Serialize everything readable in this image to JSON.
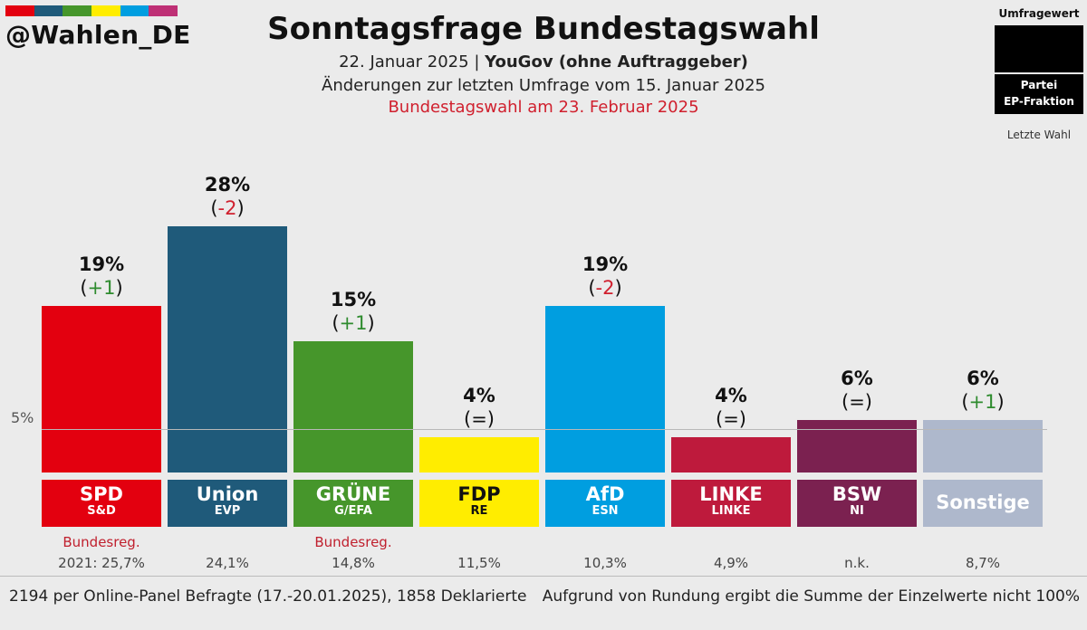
{
  "header": {
    "handle": "@Wahlen_DE",
    "title": "Sonntagsfrage Bundestagswahl",
    "date": "22. Januar 2025",
    "pollster": "YouGov (ohne Auftraggeber)",
    "changes_note": "Änderungen zur letzten Umfrage vom 15. Januar 2025",
    "election_note": "Bundestagswahl am 23. Februar 2025",
    "strip_colors": [
      "#e3000f",
      "#1f5a7a",
      "#46962b",
      "#ffed00",
      "#009ee0",
      "#be3075"
    ]
  },
  "legend": {
    "top": "Umfragewert",
    "party": "Partei",
    "group": "EP-Fraktion",
    "bottom": "Letzte Wahl"
  },
  "chart_data": {
    "type": "bar",
    "title": "Sonntagsfrage Bundestagswahl",
    "xlabel": "",
    "ylabel": "",
    "ylim": [
      0,
      30
    ],
    "threshold": {
      "value": 5,
      "label": "5%"
    },
    "categories": [
      "SPD",
      "Union",
      "GRÜNE",
      "FDP",
      "AfD",
      "LINKE",
      "BSW",
      "Sonstige"
    ],
    "values": [
      19,
      28,
      15,
      4,
      19,
      4,
      6,
      6
    ],
    "bars": [
      {
        "party": "SPD",
        "group": "S&D",
        "value": 19,
        "value_label": "19%",
        "change_open": "(",
        "change": "+1",
        "change_close": ")",
        "change_color": "#2e8b2e",
        "color": "#e3000f",
        "note": "Bundesreg.",
        "last_election": "2021: 25,7%"
      },
      {
        "party": "Union",
        "group": "EVP",
        "value": 28,
        "value_label": "28%",
        "change_open": "(",
        "change": "-2",
        "change_close": ")",
        "change_color": "#d0202e",
        "color": "#1f5a7a",
        "note": "",
        "last_election": "24,1%"
      },
      {
        "party": "GRÜNE",
        "group": "G/EFA",
        "value": 15,
        "value_label": "15%",
        "change_open": "(",
        "change": "+1",
        "change_close": ")",
        "change_color": "#2e8b2e",
        "color": "#46962b",
        "note": "Bundesreg.",
        "last_election": "14,8%"
      },
      {
        "party": "FDP",
        "group": "RE",
        "value": 4,
        "value_label": "4%",
        "change_open": "(",
        "change": "=",
        "change_close": ")",
        "change_color": "#111111",
        "color": "#ffed00",
        "note": "",
        "last_election": "11,5%"
      },
      {
        "party": "AfD",
        "group": "ESN",
        "value": 19,
        "value_label": "19%",
        "change_open": "(",
        "change": "-2",
        "change_close": ")",
        "change_color": "#d0202e",
        "color": "#009ee0",
        "note": "",
        "last_election": "10,3%"
      },
      {
        "party": "LINKE",
        "group": "LINKE",
        "value": 4,
        "value_label": "4%",
        "change_open": "(",
        "change": "=",
        "change_close": ")",
        "change_color": "#111111",
        "color": "#be1a3c",
        "note": "",
        "last_election": "4,9%"
      },
      {
        "party": "BSW",
        "group": "NI",
        "value": 6,
        "value_label": "6%",
        "change_open": "(",
        "change": "=",
        "change_close": ")",
        "change_color": "#111111",
        "color": "#7b2150",
        "note": "",
        "last_election": "n.k."
      },
      {
        "party": "Sonstige",
        "group": "",
        "value": 6,
        "value_label": "6%",
        "change_open": "(",
        "change": "+1",
        "change_close": ")",
        "change_color": "#2e8b2e",
        "color": "#aeb8cc",
        "note": "",
        "last_election": "8,7%"
      }
    ]
  },
  "footer": {
    "left": "2194 per Online-Panel Befragte (17.-20.01.2025), 1858 Deklarierte",
    "right": "Aufgrund von Rundung ergibt die Summe der Einzelwerte nicht 100%"
  }
}
